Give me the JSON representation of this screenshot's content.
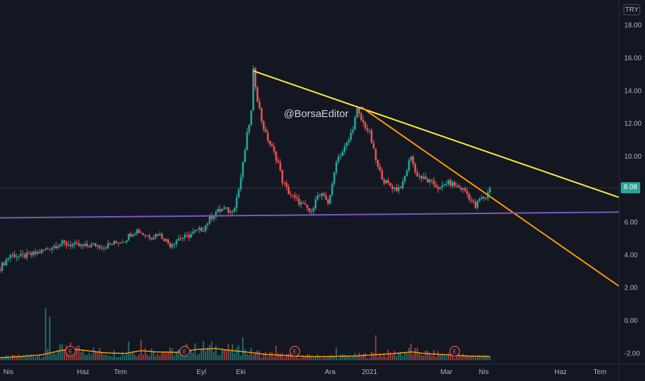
{
  "colors": {
    "background": "#131722",
    "up": "#26a69a",
    "down": "#ef5350",
    "grid_text": "#b2b5be",
    "trendline_yellow": "#ffeb3b",
    "trendline_orange": "#ff9800",
    "support_purple": "#7e57c2",
    "volume_ma": "#ff9800",
    "earnings_marker": "#ef5350"
  },
  "header": {
    "currency": "TRY"
  },
  "watermark": "@BorsaEditor",
  "last_price_label": "8.08",
  "earnings_marker_label": "E",
  "chart_data": {
    "type": "candlestick",
    "currency": "TRY",
    "y_ticks": [
      "18.00",
      "16.00",
      "14.00",
      "12.00",
      "10.00",
      "8.00",
      "6.00",
      "4.00",
      "2.00",
      "0.00",
      "-2.00"
    ],
    "y_tick_values": [
      18,
      16,
      14,
      12,
      10,
      8,
      6,
      4,
      2,
      0,
      -2
    ],
    "ylim": [
      -2.6,
      19.3
    ],
    "x_ticks": [
      "Nis",
      "Haz",
      "Tem",
      "Eyl",
      "Eki",
      "Ara",
      "2021",
      "Mar",
      "Nis",
      "Haz",
      "Tem"
    ],
    "x_tick_index": [
      0,
      40,
      58,
      97,
      116,
      159,
      178,
      215,
      233,
      270,
      289
    ],
    "total_index_span": 298,
    "last_price": 8.08,
    "close_path": [
      [
        0,
        3.2
      ],
      [
        5,
        4.0
      ],
      [
        10,
        3.9
      ],
      [
        15,
        4.0
      ],
      [
        20,
        4.2
      ],
      [
        25,
        4.5
      ],
      [
        30,
        4.7
      ],
      [
        35,
        4.6
      ],
      [
        40,
        4.5
      ],
      [
        45,
        4.6
      ],
      [
        50,
        4.5
      ],
      [
        55,
        4.7
      ],
      [
        60,
        4.9
      ],
      [
        63,
        5.3
      ],
      [
        66,
        5.5
      ],
      [
        70,
        5.2
      ],
      [
        73,
        5.1
      ],
      [
        76,
        5.3
      ],
      [
        79,
        5.0
      ],
      [
        82,
        4.6
      ],
      [
        86,
        5.0
      ],
      [
        90,
        5.1
      ],
      [
        94,
        5.4
      ],
      [
        98,
        5.6
      ],
      [
        101,
        6.2
      ],
      [
        104,
        6.6
      ],
      [
        108,
        6.8
      ],
      [
        111,
        6.6
      ],
      [
        113,
        7.0
      ],
      [
        115,
        8.0
      ],
      [
        117,
        9.5
      ],
      [
        119,
        11.3
      ],
      [
        121,
        12.7
      ],
      [
        122,
        15.2
      ],
      [
        124,
        13.5
      ],
      [
        126,
        12.2
      ],
      [
        128,
        11.3
      ],
      [
        131,
        10.5
      ],
      [
        134,
        9.6
      ],
      [
        136,
        8.5
      ],
      [
        139,
        7.8
      ],
      [
        142,
        7.4
      ],
      [
        145,
        7.1
      ],
      [
        148,
        6.8
      ],
      [
        150,
        6.5
      ],
      [
        152,
        7.5
      ],
      [
        155,
        7.6
      ],
      [
        158,
        7.2
      ],
      [
        160,
        8.2
      ],
      [
        162,
        9.8
      ],
      [
        165,
        10.3
      ],
      [
        168,
        11.0
      ],
      [
        170,
        11.8
      ],
      [
        172,
        12.8
      ],
      [
        174,
        12.2
      ],
      [
        176,
        11.8
      ],
      [
        178,
        11.4
      ],
      [
        180,
        10.3
      ],
      [
        182,
        9.3
      ],
      [
        185,
        8.5
      ],
      [
        188,
        8.2
      ],
      [
        191,
        8.0
      ],
      [
        194,
        8.3
      ],
      [
        196,
        9.2
      ],
      [
        198,
        10.1
      ],
      [
        200,
        9.0
      ],
      [
        203,
        8.7
      ],
      [
        206,
        8.5
      ],
      [
        209,
        8.3
      ],
      [
        212,
        8.0
      ],
      [
        215,
        8.4
      ],
      [
        218,
        8.3
      ],
      [
        221,
        8.1
      ],
      [
        224,
        7.9
      ],
      [
        227,
        7.3
      ],
      [
        229,
        6.9
      ],
      [
        231,
        7.4
      ],
      [
        234,
        7.5
      ],
      [
        236,
        8.08
      ]
    ],
    "volume_ma_path": [
      [
        0,
        0.6
      ],
      [
        10,
        0.9
      ],
      [
        20,
        1.3
      ],
      [
        30,
        2.4
      ],
      [
        35,
        2.7
      ],
      [
        42,
        2.3
      ],
      [
        50,
        1.8
      ],
      [
        60,
        1.6
      ],
      [
        68,
        2.3
      ],
      [
        75,
        2.0
      ],
      [
        85,
        1.9
      ],
      [
        95,
        2.6
      ],
      [
        104,
        2.8
      ],
      [
        112,
        2.3
      ],
      [
        120,
        1.9
      ],
      [
        128,
        1.4
      ],
      [
        138,
        1.1
      ],
      [
        148,
        0.9
      ],
      [
        160,
        0.9
      ],
      [
        170,
        1.0
      ],
      [
        180,
        1.3
      ],
      [
        190,
        1.6
      ],
      [
        198,
        2.0
      ],
      [
        205,
        1.6
      ],
      [
        215,
        1.3
      ],
      [
        225,
        1.0
      ],
      [
        236,
        0.9
      ]
    ],
    "volume_spikes": [
      [
        22,
        12.5
      ],
      [
        24,
        10.5
      ],
      [
        62,
        4.5
      ],
      [
        68,
        5.0
      ],
      [
        90,
        4.0
      ],
      [
        98,
        4.6
      ],
      [
        117,
        5.5
      ],
      [
        133,
        3.5
      ],
      [
        162,
        3.0
      ],
      [
        181,
        6.0
      ],
      [
        198,
        4.0
      ],
      [
        236,
        0.8
      ]
    ],
    "earnings_marker_index": [
      34,
      89,
      142,
      219
    ],
    "trendlines": [
      {
        "name": "yellow",
        "from": [
          122,
          15.2
        ],
        "to": [
          298,
          7.5
        ]
      },
      {
        "name": "orange",
        "from": [
          174,
          13.0
        ],
        "to": [
          298,
          2.1
        ]
      },
      {
        "name": "purple-support",
        "from": [
          0,
          6.25
        ],
        "to": [
          298,
          6.6
        ]
      }
    ]
  }
}
